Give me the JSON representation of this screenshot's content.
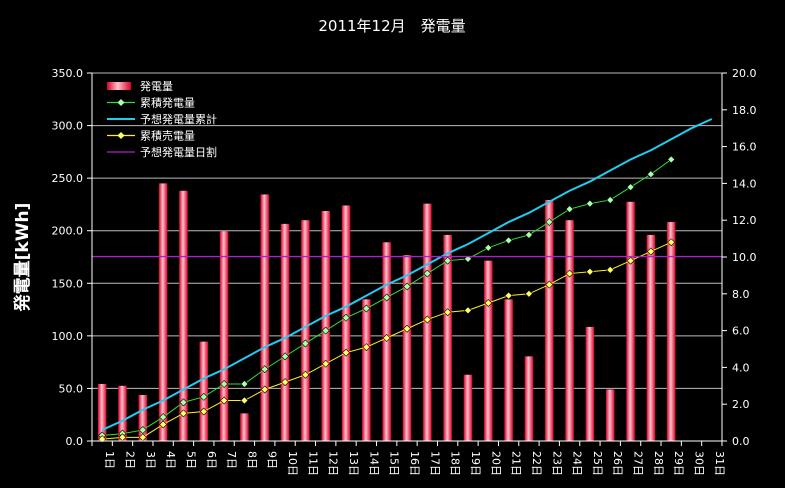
{
  "chart_data": {
    "type": "bar",
    "title": "2011年12月　発電量",
    "ylabel": "発電量[kWh]",
    "ylim": [
      0,
      350
    ],
    "y2lim": [
      0,
      20
    ],
    "yticks": [
      "0.0",
      "50.0",
      "100.0",
      "150.0",
      "200.0",
      "250.0",
      "300.0",
      "350.0"
    ],
    "y2ticks": [
      "0.0",
      "2.0",
      "4.0",
      "6.0",
      "8.0",
      "10.0",
      "12.0",
      "14.0",
      "16.0",
      "18.0",
      "20.0"
    ],
    "categories": [
      "1日",
      "2日",
      "3日",
      "4日",
      "5日",
      "6日",
      "7日",
      "8日",
      "9日",
      "10日",
      "11日",
      "12日",
      "13日",
      "14日",
      "15日",
      "16日",
      "17日",
      "18日",
      "19日",
      "20日",
      "21日",
      "22日",
      "23日",
      "24日",
      "25日",
      "26日",
      "27日",
      "28日",
      "29日",
      "30日",
      "31日"
    ],
    "legend_position": "top-left",
    "grid": true,
    "series": [
      {
        "name": "発電量",
        "type": "bar",
        "axis": "left",
        "color": "#ff2040",
        "values": [
          3.1,
          3.0,
          2.5,
          14.0,
          13.6,
          5.4,
          11.4,
          1.5,
          13.4,
          11.8,
          12.0,
          12.5,
          12.8,
          7.7,
          10.8,
          10.1,
          12.9,
          11.2,
          3.6,
          9.8,
          7.7,
          4.6,
          13.1,
          12.0,
          6.2,
          2.8,
          13.0,
          11.2,
          11.9,
          null,
          null
        ]
      },
      {
        "name": "累積発電量",
        "type": "line",
        "axis": "right",
        "color": "#33dd33",
        "marker_color": "#aaffaa",
        "values": [
          0.3,
          0.4,
          0.6,
          1.3,
          2.1,
          2.4,
          3.1,
          3.1,
          3.9,
          4.6,
          5.3,
          6.0,
          6.7,
          7.2,
          7.8,
          8.4,
          9.1,
          9.8,
          9.9,
          10.5,
          10.9,
          11.2,
          11.9,
          12.6,
          12.9,
          13.1,
          13.8,
          14.5,
          15.3,
          null,
          null
        ]
      },
      {
        "name": "予想発電量累計",
        "type": "line",
        "axis": "right",
        "color": "#22ccee",
        "values": [
          0.6,
          1.1,
          1.7,
          2.2,
          2.8,
          3.4,
          3.9,
          4.5,
          5.1,
          5.6,
          6.2,
          6.8,
          7.3,
          7.9,
          8.5,
          9.0,
          9.6,
          10.2,
          10.7,
          11.3,
          11.9,
          12.4,
          13.0,
          13.6,
          14.1,
          14.7,
          15.3,
          15.8,
          16.4,
          17.0,
          17.5
        ]
      },
      {
        "name": "累積売電量",
        "type": "line",
        "axis": "right",
        "color": "#ffee22",
        "marker_color": "#ffff66",
        "values": [
          0.1,
          0.2,
          0.2,
          0.9,
          1.5,
          1.6,
          2.2,
          2.2,
          2.8,
          3.2,
          3.6,
          4.2,
          4.8,
          5.1,
          5.6,
          6.1,
          6.6,
          7.0,
          7.1,
          7.5,
          7.9,
          8.0,
          8.5,
          9.1,
          9.2,
          9.3,
          9.8,
          10.3,
          10.8,
          null,
          null
        ]
      },
      {
        "name": "予想発電量日割",
        "type": "line",
        "axis": "left",
        "color": "#aa22cc",
        "values": [
          175.4,
          175.4,
          175.4,
          175.4,
          175.4,
          175.4,
          175.4,
          175.4,
          175.4,
          175.4,
          175.4,
          175.4,
          175.4,
          175.4,
          175.4,
          175.4,
          175.4,
          175.4,
          175.4,
          175.4,
          175.4,
          175.4,
          175.4,
          175.4,
          175.4,
          175.4,
          175.4,
          175.4,
          175.4,
          175.4,
          175.4
        ]
      }
    ]
  }
}
